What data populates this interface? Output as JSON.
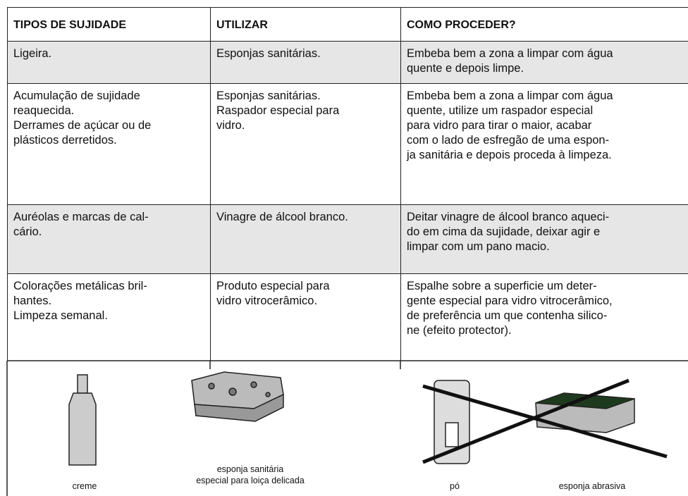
{
  "table": {
    "header": [
      "TIPOS DE SUJIDADE",
      "UTILIZAR",
      "COMO PROCEDER?"
    ],
    "rows": [
      [
        [
          "Ligeira."
        ],
        [
          "Esponjas sanitárias."
        ],
        [
          "Embeba bem a zona a limpar com água",
          "quente e depois limpe."
        ]
      ],
      [
        [
          "Acumulação de sujidade",
          "reaquecida.",
          "Derrames de açúcar ou de",
          "plásticos derretidos."
        ],
        [
          "Esponjas sanitárias.",
          "Raspador especial para",
          "vidro."
        ],
        [
          "Embeba bem a zona a limpar com água",
          "quente, utilize um raspador especial",
          "para vidro para tirar o maior, acabar",
          "com o lado de esfregão de uma espon-",
          "ja sanitária e depois proceda à limpeza."
        ]
      ],
      [
        [
          "Auréolas e marcas de cal-",
          "cário."
        ],
        [
          "Vinagre de álcool branco."
        ],
        [
          "Deitar vinagre de álcool branco aqueci-",
          "do em cima da sujidade, deixar agir e",
          "limpar com um pano macio."
        ]
      ],
      [
        [
          "Colorações metálicas bril-",
          "hantes.",
          "Limpeza semanal."
        ],
        [
          "Produto especial para",
          "vidro vitrocerâmico."
        ],
        [
          "Espalhe sobre a superficie um deter-",
          "gente especial para vidro vitrocerâmico,",
          "de preferência um que contenha silico-",
          "ne (efeito protector)."
        ]
      ]
    ]
  },
  "illustrations": {
    "captions": [
      [
        "creme"
      ],
      [
        "esponja sanitária",
        "especial para loiça delicada"
      ],
      [
        "pó"
      ],
      [
        "esponja abrasiva"
      ]
    ]
  }
}
